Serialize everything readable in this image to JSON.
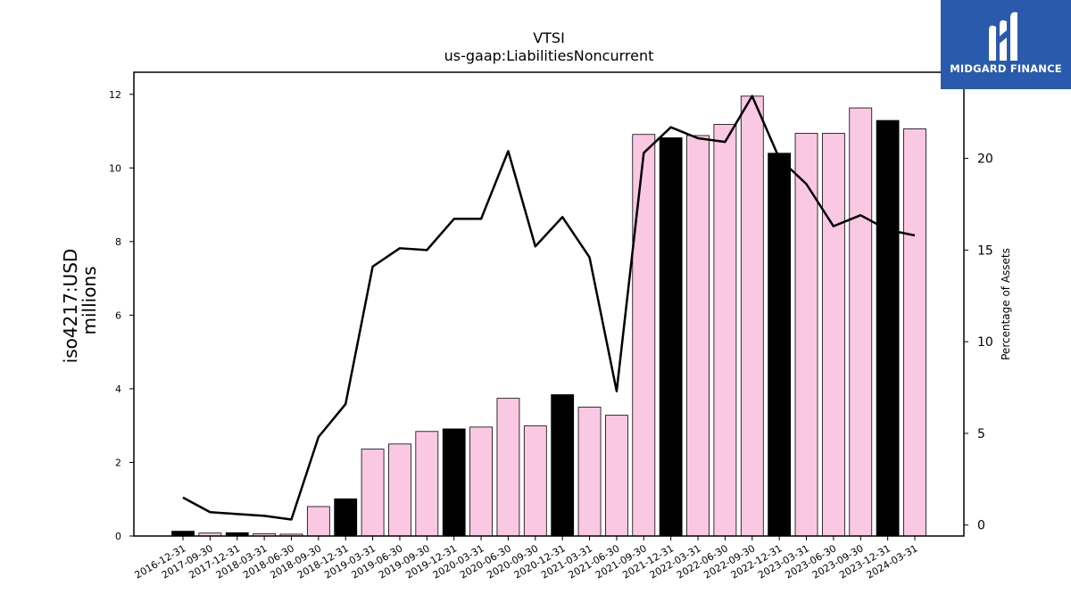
{
  "logo": {
    "text": "MIDGARD FINANCE",
    "icon": "midgard-m-icon",
    "bg_color": "#2a5aab"
  },
  "chart_data": {
    "type": "bar",
    "title": "VTSI",
    "subtitle": "us-gaap:LiabilitiesNoncurrent",
    "ylabel": "iso4217:USD",
    "ylabel_unit": "millions",
    "y2label": "Percentage of Assets",
    "ylim": [
      0,
      12.6
    ],
    "y2lim": [
      -0.6,
      24.7
    ],
    "yticks": [
      0,
      2,
      4,
      6,
      8,
      10,
      12
    ],
    "y2ticks": [
      0,
      5,
      10,
      15,
      20
    ],
    "categories": [
      "2016-12-31",
      "2017-09-30",
      "2017-12-31",
      "2018-03-31",
      "2018-06-30",
      "2018-09-30",
      "2018-12-31",
      "2019-03-31",
      "2019-06-30",
      "2019-09-30",
      "2019-12-31",
      "2020-03-31",
      "2020-06-30",
      "2020-09-30",
      "2020-12-31",
      "2021-03-31",
      "2021-06-30",
      "2021-09-30",
      "2021-12-31",
      "2022-03-31",
      "2022-06-30",
      "2022-09-30",
      "2022-12-31",
      "2023-03-31",
      "2023-06-30",
      "2023-09-30",
      "2023-12-31",
      "2024-03-31"
    ],
    "series": [
      {
        "kind": "bar",
        "values": [
          0.13,
          0.08,
          0.09,
          0.06,
          0.05,
          0.8,
          1.01,
          2.36,
          2.5,
          2.84,
          2.91,
          2.96,
          3.74,
          2.99,
          3.84,
          3.5,
          3.28,
          10.91,
          10.82,
          10.88,
          11.18,
          11.95,
          10.4,
          10.94,
          10.94,
          11.63,
          11.29,
          11.06
        ],
        "highlight": [
          true,
          false,
          true,
          false,
          false,
          false,
          true,
          false,
          false,
          false,
          true,
          false,
          false,
          false,
          true,
          false,
          false,
          false,
          true,
          false,
          false,
          false,
          true,
          false,
          false,
          false,
          true,
          false
        ]
      },
      {
        "kind": "line",
        "axis": "right",
        "values": [
          1.5,
          0.7,
          0.6,
          0.5,
          0.3,
          4.8,
          6.6,
          14.1,
          15.1,
          15.0,
          16.7,
          16.7,
          20.4,
          15.2,
          16.8,
          14.6,
          7.3,
          20.3,
          21.7,
          21.1,
          20.9,
          23.4,
          20.0,
          18.6,
          16.3,
          16.9,
          16.1,
          15.8
        ]
      }
    ],
    "colors": {
      "bar": "#fbc8e4",
      "bar_highlight": "#000000",
      "bar_edge": "#000000",
      "line": "#000000"
    },
    "grid": false,
    "legend": "none"
  }
}
